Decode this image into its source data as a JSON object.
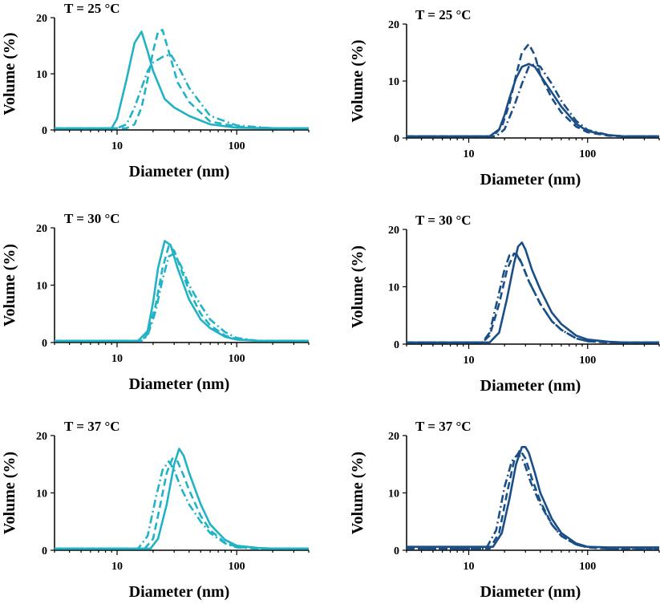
{
  "chart_data": [
    {
      "panel": "top-left",
      "type": "line",
      "title": "T = 25 °C",
      "xlabel": "Diameter (nm)",
      "ylabel": "Volume (%)",
      "xscale": "log",
      "xlim": [
        3,
        400
      ],
      "ylim": [
        0,
        20
      ],
      "xticks": [
        10,
        100
      ],
      "xtick_labels": [
        "10",
        "100"
      ],
      "yticks": [
        0,
        10,
        20
      ],
      "ytick_labels": [
        "0",
        "10",
        "20"
      ],
      "color": "#21b2c6",
      "series": [
        {
          "name": "solid",
          "dash": "solid",
          "x": [
            3,
            9,
            10,
            12,
            14,
            16,
            18,
            20,
            25,
            30,
            40,
            60,
            100,
            200,
            400
          ],
          "y": [
            0.3,
            0.3,
            2,
            9,
            15.5,
            17.5,
            14,
            10.5,
            5.5,
            4,
            2.5,
            1,
            0.4,
            0.3,
            0.3
          ]
        },
        {
          "name": "dashed",
          "dash": "dashed",
          "x": [
            3,
            12,
            14,
            16,
            18,
            20,
            22,
            24,
            27,
            32,
            40,
            60,
            100,
            200,
            400
          ],
          "y": [
            0.3,
            0.3,
            1,
            4,
            9,
            14,
            17.5,
            17.8,
            14,
            8.5,
            5,
            1.5,
            0.6,
            0.3,
            0.3
          ]
        },
        {
          "name": "dash-dot",
          "dash": "dash-dot",
          "x": [
            3,
            10,
            12,
            14,
            16,
            18,
            20,
            24,
            28,
            34,
            40,
            60,
            100,
            200,
            400
          ],
          "y": [
            0.3,
            0.3,
            1,
            4,
            7.5,
            10.5,
            12,
            13,
            13.5,
            10.5,
            7.5,
            2.5,
            0.8,
            0.3,
            0.3
          ]
        }
      ]
    },
    {
      "panel": "top-right",
      "type": "line",
      "title": "T = 25 °C",
      "xlabel": "Diameter (nm)",
      "ylabel": "Volume (%)",
      "xscale": "log",
      "xlim": [
        3,
        400
      ],
      "ylim": [
        0,
        20
      ],
      "xticks": [
        10,
        100
      ],
      "xtick_labels": [
        "10",
        "100"
      ],
      "yticks": [
        0,
        10,
        20
      ],
      "ytick_labels": [
        "0",
        "10",
        "20"
      ],
      "color": "#1a4e86",
      "series": [
        {
          "name": "solid",
          "dash": "solid",
          "x": [
            3,
            15,
            18,
            20,
            22,
            25,
            28,
            32,
            36,
            40,
            50,
            60,
            80,
            100,
            150,
            200,
            400
          ],
          "y": [
            0.3,
            0.3,
            1.5,
            4,
            7,
            10.5,
            12.5,
            13,
            12.5,
            11,
            8,
            5.5,
            2.5,
            1.2,
            0.5,
            0.3,
            0.3
          ]
        },
        {
          "name": "dashed",
          "dash": "dashed",
          "x": [
            3,
            16,
            19,
            22,
            25,
            28,
            32,
            36,
            40,
            50,
            60,
            80,
            100,
            150,
            200,
            400
          ],
          "y": [
            0.3,
            0.3,
            2,
            6,
            11,
            15,
            16.5,
            14.5,
            11,
            7,
            4.5,
            2,
            1,
            0.4,
            0.3,
            0.3
          ]
        },
        {
          "name": "dash-dot",
          "dash": "dash-dot",
          "x": [
            3,
            17,
            20,
            24,
            28,
            32,
            36,
            40,
            50,
            60,
            80,
            100,
            150,
            200,
            400
          ],
          "y": [
            0.3,
            0.3,
            1.5,
            5.5,
            9.5,
            12.5,
            13,
            12.5,
            9.5,
            6.5,
            3,
            1.4,
            0.5,
            0.3,
            0.3
          ]
        }
      ]
    },
    {
      "panel": "middle-left",
      "type": "line",
      "title": "T = 30 °C",
      "xlabel": "Diameter (nm)",
      "ylabel": "Volume (%)",
      "xscale": "log",
      "xlim": [
        3,
        400
      ],
      "ylim": [
        0,
        20
      ],
      "xticks": [
        10,
        100
      ],
      "xtick_labels": [
        "10",
        "100"
      ],
      "yticks": [
        0,
        10,
        20
      ],
      "ytick_labels": [
        "0",
        "10",
        "20"
      ],
      "color": "#21b2c6",
      "series": [
        {
          "name": "solid",
          "dash": "solid",
          "x": [
            3,
            15,
            18,
            20,
            22,
            25,
            28,
            32,
            40,
            50,
            60,
            80,
            100,
            150,
            400
          ],
          "y": [
            0.3,
            0.3,
            2,
            7,
            13,
            17.7,
            17,
            13,
            7.5,
            4,
            2.5,
            1,
            0.5,
            0.3,
            0.3
          ]
        },
        {
          "name": "dashed",
          "dash": "dashed",
          "x": [
            3,
            16,
            18,
            21,
            24,
            27,
            30,
            34,
            40,
            50,
            60,
            80,
            100,
            150,
            400
          ],
          "y": [
            0.3,
            0.3,
            1.5,
            6.5,
            13,
            16.8,
            16,
            13,
            9,
            5,
            3,
            1.2,
            0.6,
            0.3,
            0.3
          ]
        },
        {
          "name": "dash-dot",
          "dash": "dash-dot",
          "x": [
            3,
            16,
            18,
            21,
            24,
            27,
            30,
            34,
            40,
            50,
            60,
            80,
            100,
            150,
            400
          ],
          "y": [
            0.3,
            0.3,
            1.2,
            5.5,
            11,
            15,
            15.5,
            13.5,
            10,
            6.5,
            4,
            1.8,
            0.8,
            0.3,
            0.3
          ]
        }
      ]
    },
    {
      "panel": "middle-right",
      "type": "line",
      "title": "T = 30 °C",
      "xlabel": "Diameter (nm)",
      "ylabel": "Volume (%)",
      "xscale": "log",
      "xlim": [
        3,
        400
      ],
      "ylim": [
        0,
        20
      ],
      "xticks": [
        10,
        100
      ],
      "xtick_labels": [
        "10",
        "100"
      ],
      "yticks": [
        0,
        10,
        20
      ],
      "ytick_labels": [
        "0",
        "10",
        "20"
      ],
      "color": "#1a4e86",
      "series": [
        {
          "name": "solid",
          "dash": "solid",
          "x": [
            3,
            15,
            18,
            21,
            24,
            26,
            28,
            30,
            34,
            40,
            50,
            60,
            80,
            100,
            150,
            200,
            400
          ],
          "y": [
            0.3,
            0.3,
            2,
            8,
            14,
            17,
            17.7,
            16.5,
            13,
            9.5,
            5.5,
            3.5,
            1.5,
            0.8,
            0.4,
            0.3,
            0.3
          ]
        },
        {
          "name": "dashed",
          "dash": "dashed",
          "x": [
            3,
            13,
            15,
            18,
            21,
            24,
            26,
            28,
            32,
            40,
            50,
            60,
            80,
            100,
            150,
            400
          ],
          "y": [
            0.3,
            0.3,
            1.5,
            7,
            13,
            15.8,
            15.5,
            14,
            11,
            7,
            4,
            2.5,
            1,
            0.5,
            0.3,
            0.3
          ]
        },
        {
          "name": "dash-dot",
          "dash": "dash-dot",
          "x": [
            3,
            13,
            15,
            18,
            20,
            22,
            25,
            28,
            32,
            40,
            50,
            60,
            80,
            100,
            150,
            400
          ],
          "y": [
            0.3,
            0.3,
            2,
            9,
            13,
            15.5,
            15.8,
            14,
            11,
            7,
            4,
            2.5,
            1,
            0.5,
            0.3,
            0.3
          ]
        }
      ]
    },
    {
      "panel": "bottom-left",
      "type": "line",
      "title": "T = 37 °C",
      "xlabel": "Diameter (nm)",
      "ylabel": "Volume (%)",
      "xscale": "log",
      "xlim": [
        3,
        400
      ],
      "ylim": [
        0,
        20
      ],
      "xticks": [
        10,
        100
      ],
      "xtick_labels": [
        "10",
        "100"
      ],
      "yticks": [
        0,
        10,
        20
      ],
      "ytick_labels": [
        "0",
        "10",
        "20"
      ],
      "color": "#21b2c6",
      "series": [
        {
          "name": "solid",
          "dash": "solid",
          "x": [
            3,
            19,
            22,
            26,
            30,
            33,
            36,
            40,
            50,
            60,
            80,
            100,
            150,
            200,
            400
          ],
          "y": [
            0.3,
            0.3,
            2,
            8,
            15,
            17.7,
            16.5,
            13.5,
            8,
            4.5,
            1.8,
            0.8,
            0.4,
            0.3,
            0.3
          ]
        },
        {
          "name": "dashed",
          "dash": "dashed",
          "x": [
            3,
            17,
            20,
            23,
            26,
            29,
            32,
            36,
            40,
            50,
            60,
            80,
            100,
            150,
            400
          ],
          "y": [
            0.3,
            0.3,
            2,
            8,
            13.5,
            16,
            15.5,
            13,
            10.5,
            6,
            3.5,
            1.3,
            0.6,
            0.3,
            0.3
          ]
        },
        {
          "name": "dash-dot",
          "dash": "dash-dot",
          "x": [
            3,
            15,
            18,
            21,
            24,
            27,
            30,
            34,
            40,
            50,
            60,
            80,
            100,
            150,
            400
          ],
          "y": [
            0.3,
            0.3,
            2.5,
            9,
            14,
            15.5,
            14,
            11,
            8,
            5,
            3,
            1.2,
            0.5,
            0.3,
            0.3
          ]
        }
      ]
    },
    {
      "panel": "bottom-right",
      "type": "line",
      "title": "T = 37 °C",
      "xlabel": "Diameter (nm)",
      "ylabel": "Volume (%)",
      "xscale": "log",
      "xlim": [
        3,
        400
      ],
      "ylim": [
        0,
        20
      ],
      "xticks": [
        10,
        100
      ],
      "xtick_labels": [
        "10",
        "100"
      ],
      "yticks": [
        0,
        10,
        20
      ],
      "ytick_labels": [
        "0",
        "10",
        "20"
      ],
      "color": "#1a4e86",
      "series": [
        {
          "name": "solid",
          "dash": "solid",
          "x": [
            3,
            16,
            19,
            22,
            25,
            28,
            30,
            32,
            36,
            40,
            50,
            60,
            80,
            100,
            150,
            200,
            400
          ],
          "y": [
            0.6,
            0.6,
            3,
            9,
            15,
            18,
            18,
            17,
            13.5,
            10,
            5.5,
            3,
            1.2,
            0.6,
            0.5,
            0.5,
            0.5
          ]
        },
        {
          "name": "dashed",
          "dash": "dashed",
          "x": [
            3,
            15,
            18,
            21,
            24,
            27,
            30,
            34,
            40,
            50,
            60,
            80,
            100,
            150,
            400
          ],
          "y": [
            0.3,
            0.3,
            3,
            10,
            15.5,
            17.5,
            16,
            12.5,
            8.5,
            4.5,
            2.5,
            1,
            0.5,
            0.3,
            0.3
          ]
        },
        {
          "name": "dash-dot",
          "dash": "dash-dot",
          "x": [
            3,
            14,
            17,
            20,
            23,
            26,
            29,
            33,
            40,
            50,
            60,
            80,
            100,
            150,
            400
          ],
          "y": [
            0.3,
            0.3,
            3.5,
            11,
            15.5,
            16.8,
            15.5,
            12,
            8,
            4.5,
            2.5,
            1,
            0.5,
            0.3,
            0.3
          ]
        }
      ]
    }
  ]
}
